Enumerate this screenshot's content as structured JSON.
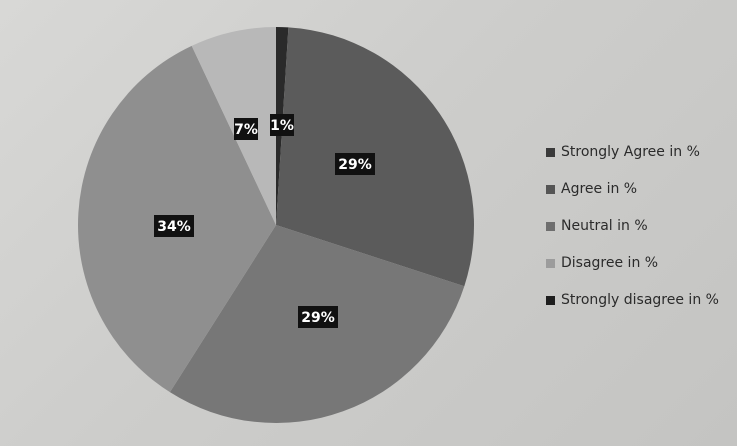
{
  "chart_data": {
    "type": "pie",
    "title": "",
    "categories": [
      "Strongly Agree in %",
      "Agree in %",
      "Neutral in %",
      "Disagree in %",
      "Strongly disagree in %"
    ],
    "values": [
      1,
      29,
      29,
      34,
      7
    ],
    "data_labels": [
      "1%",
      "29%",
      "29%",
      "34%",
      "7%"
    ],
    "legend_order": [
      "Strongly Agree in %",
      "Agree in %",
      "Neutral in %",
      "Disagree in %",
      "Strongly disagree in %"
    ],
    "legend_position": "right",
    "colors": [
      "#2a2a2a",
      "#5b5b5b",
      "#777777",
      "#8f8f8f",
      "#b8b8b8"
    ],
    "legend_colors": [
      "#3a3a3a",
      "#555555",
      "#6e6e6e",
      "#9c9c9c",
      "#1e1e1e"
    ]
  }
}
